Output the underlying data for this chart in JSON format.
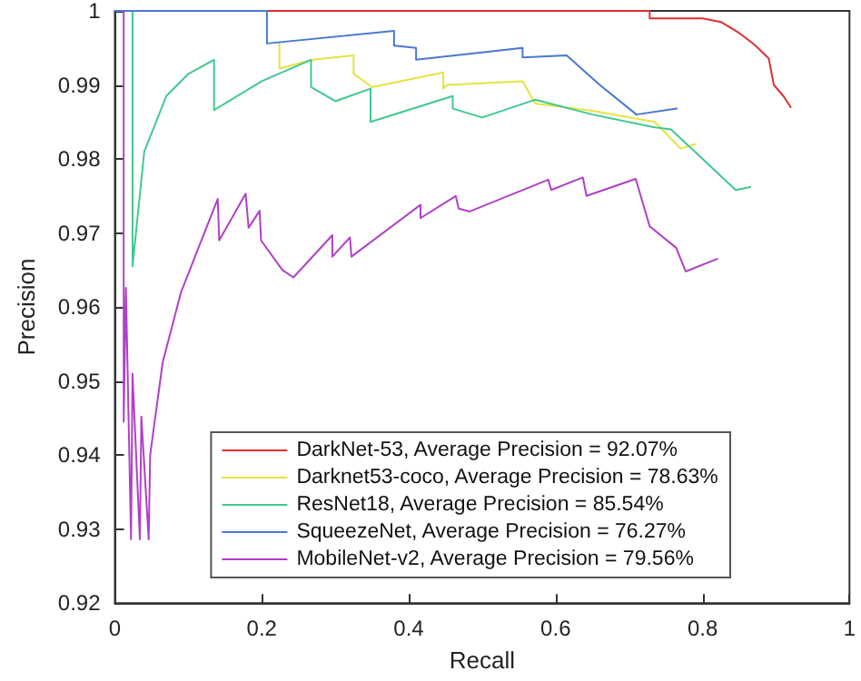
{
  "chart_data": {
    "type": "line",
    "xlabel": "Recall",
    "ylabel": "Precision",
    "xlim": [
      0,
      1
    ],
    "xticks": [
      0,
      0.2,
      0.4,
      0.6,
      0.8,
      1
    ],
    "ylim": [
      0.92,
      1
    ],
    "yticks": [
      0.92,
      0.93,
      0.94,
      0.95,
      0.96,
      0.97,
      0.98,
      0.99,
      1
    ],
    "grid": false,
    "legend": "bottom right",
    "marker": "none",
    "line_style": "solid",
    "series": [
      {
        "name": "DarkNet-53, Average Precision = 92.07%",
        "color": "#e03030",
        "x": [
          0,
          0.728,
          0.728,
          0.8,
          0.825,
          0.85,
          0.87,
          0.89,
          0.897,
          0.91,
          0.92
        ],
        "values": [
          1,
          1,
          0.999,
          0.999,
          0.9985,
          0.997,
          0.9955,
          0.9936,
          0.99,
          0.9885,
          0.987
        ]
      },
      {
        "name": "Darknet53-coco, Average Precision = 78.63%",
        "color": "#e4e440",
        "x": [
          0.224,
          0.224,
          0.27,
          0.325,
          0.325,
          0.35,
          0.447,
          0.447,
          0.452,
          0.555,
          0.572,
          0.65,
          0.735,
          0.77,
          0.79
        ],
        "values": [
          0.9956,
          0.9922,
          0.9934,
          0.994,
          0.9915,
          0.9897,
          0.9917,
          0.9895,
          0.99,
          0.9905,
          0.9875,
          0.9865,
          0.985,
          0.9814,
          0.982
        ]
      },
      {
        "name": "ResNet18, Average Precision = 85.54%",
        "color": "#40c890",
        "x": [
          0.024,
          0.024,
          0.04,
          0.07,
          0.1,
          0.135,
          0.135,
          0.2,
          0.267,
          0.267,
          0.3,
          0.348,
          0.348,
          0.46,
          0.46,
          0.5,
          0.572,
          0.65,
          0.733,
          0.757,
          0.8,
          0.845,
          0.865
        ],
        "values": [
          1,
          0.9655,
          0.981,
          0.9885,
          0.9915,
          0.9934,
          0.9866,
          0.9905,
          0.9934,
          0.9897,
          0.9878,
          0.9895,
          0.985,
          0.9885,
          0.9868,
          0.9856,
          0.988,
          0.986,
          0.9843,
          0.984,
          0.98,
          0.9758,
          0.9762
        ]
      },
      {
        "name": "SqueezeNet, Average Precision = 76.27%",
        "color": "#4a78d0",
        "x": [
          0,
          0.207,
          0.207,
          0.38,
          0.38,
          0.41,
          0.41,
          0.555,
          0.555,
          0.615,
          0.66,
          0.71,
          0.765
        ],
        "values": [
          1,
          1,
          0.9956,
          0.9973,
          0.9953,
          0.995,
          0.9934,
          0.995,
          0.9937,
          0.994,
          0.99,
          0.986,
          0.9868
        ]
      },
      {
        "name": "MobileNet-v2, Average Precision = 79.56%",
        "color": "#b040c8",
        "x": [
          0.012,
          0.012,
          0.015,
          0.022,
          0.024,
          0.034,
          0.036,
          0.046,
          0.048,
          0.065,
          0.09,
          0.14,
          0.142,
          0.178,
          0.182,
          0.197,
          0.199,
          0.228,
          0.243,
          0.296,
          0.296,
          0.32,
          0.322,
          0.416,
          0.416,
          0.464,
          0.468,
          0.483,
          0.59,
          0.594,
          0.637,
          0.642,
          0.709,
          0.728,
          0.764,
          0.777,
          0.82
        ],
        "values": [
          1,
          0.9445,
          0.9626,
          0.9286,
          0.951,
          0.9286,
          0.9452,
          0.9286,
          0.94,
          0.9525,
          0.962,
          0.9746,
          0.969,
          0.9753,
          0.9707,
          0.973,
          0.969,
          0.965,
          0.964,
          0.9697,
          0.9668,
          0.9694,
          0.9668,
          0.9738,
          0.972,
          0.975,
          0.9733,
          0.9729,
          0.9772,
          0.9758,
          0.9775,
          0.975,
          0.9773,
          0.9709,
          0.968,
          0.9648,
          0.9665
        ]
      }
    ]
  }
}
